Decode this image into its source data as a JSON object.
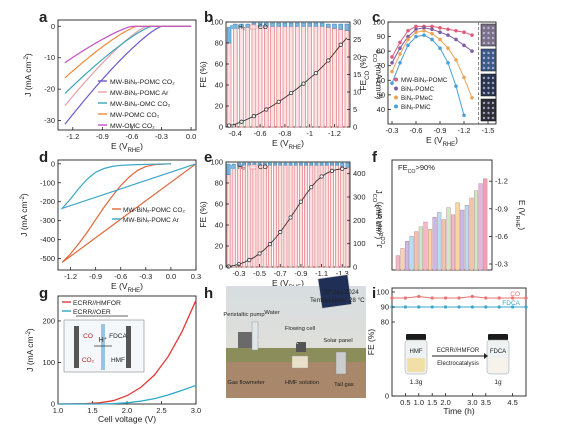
{
  "figure": {
    "panel_letters": [
      "a",
      "b",
      "c",
      "d",
      "e",
      "f",
      "g",
      "h",
      "i"
    ]
  },
  "chart_data": [
    {
      "panel": "a",
      "type": "line",
      "xlabel": "E (V",
      "xlabel_sub": "RHE",
      "xlabel_tail": ")",
      "ylabel": "J (mA cm",
      "ylabel_sup": "-2",
      "ylabel_tail": ")",
      "xlim": [
        -1.35,
        0.05
      ],
      "ylim": [
        -33,
        2
      ],
      "xticks": [
        "-1.2",
        "-0.9",
        "-0.6",
        "-0.3",
        "0.0"
      ],
      "xtick_values": [
        -1.2,
        -0.9,
        -0.6,
        -0.3,
        0.0
      ],
      "yticks": [
        "0",
        "-10",
        "-20",
        "-30"
      ],
      "ytick_values": [
        0,
        -10,
        -20,
        -30
      ],
      "legend_position": "lower-right",
      "series": [
        {
          "name": "MW-BiNₓ-POMC CO₂",
          "color": "#6a5acd",
          "onset": -0.3,
          "jmax": -32
        },
        {
          "name": "MW-BiNₓ-POMC Ar",
          "color": "#e89ea8",
          "onset": -0.45,
          "jmax": -26
        },
        {
          "name": "MW-BiNₓ-OMC CO₂",
          "color": "#3aa6b9",
          "onset": -0.4,
          "jmax": -22
        },
        {
          "name": "MW-POMC CO₂",
          "color": "#f08a3c",
          "onset": -0.55,
          "jmax": -17
        },
        {
          "name": "MW-OMC CO₂",
          "color": "#c44fc7",
          "onset": -0.6,
          "jmax": -12
        }
      ]
    },
    {
      "panel": "b",
      "type": "bar",
      "xlabel": "E (V",
      "xlabel_sub": "RHE",
      "xlabel_tail": ")",
      "ylabel": "FE (%)",
      "y2label": "J",
      "y2label_sub": "CO",
      "y2label_tail": " (mA cm",
      "y2label_sup": "-2",
      "y2label_tail2": ")",
      "ylim": [
        0,
        100
      ],
      "y2lim": [
        0,
        30
      ],
      "xticks": [
        "-0.4",
        "-0.6",
        "-0.8",
        "-1",
        "-1.2"
      ],
      "xtick_values": [
        -0.4,
        -0.6,
        -0.8,
        -1.0,
        -1.2
      ],
      "yticks": [
        "0",
        "20",
        "40",
        "60",
        "80",
        "100"
      ],
      "y2ticks": [
        "0",
        "5",
        "10",
        "15",
        "20",
        "25",
        "30"
      ],
      "legend": [
        "H₂",
        "CO"
      ],
      "x": [
        -0.35,
        -0.4,
        -0.45,
        -0.5,
        -0.55,
        -0.6,
        -0.65,
        -0.7,
        -0.75,
        -0.8,
        -0.85,
        -0.9,
        -0.95,
        -1.0,
        -1.05,
        -1.1,
        -1.15,
        -1.2,
        -1.25,
        -1.3
      ],
      "fe_co": [
        80,
        94,
        95,
        95,
        96,
        96,
        96,
        96,
        96,
        96,
        96,
        96,
        96,
        96,
        96,
        96,
        95,
        94,
        93,
        92
      ],
      "fe_h2": [
        15,
        4,
        3,
        3,
        3,
        3,
        3,
        3,
        3,
        3,
        3,
        3,
        3,
        3,
        3,
        3,
        3,
        4,
        5,
        6
      ],
      "j_co": [
        0.4,
        0.8,
        1.5,
        2.3,
        3.1,
        4.0,
        5.0,
        6.1,
        7.2,
        8.4,
        9.7,
        11.0,
        12.4,
        13.9,
        15.4,
        17.1,
        19.0,
        21.2,
        23.5,
        25.5
      ],
      "colors": {
        "co": "#e6868c",
        "h2": "#7fb6dd"
      }
    },
    {
      "panel": "c",
      "type": "line",
      "xlabel": "E (V",
      "xlabel_sub": "RHE",
      "xlabel_tail": ")",
      "ylabel": "FE",
      "ylabel_sub": "CO",
      "ylabel_tail": " (%)",
      "xlim": [
        -0.25,
        -1.6
      ],
      "ylim": [
        30,
        100
      ],
      "xticks": [
        "-0.3",
        "-0.6",
        "-0.9",
        "-1.2",
        "-1.5"
      ],
      "xtick_values": [
        -0.3,
        -0.6,
        -0.9,
        -1.2,
        -1.5
      ],
      "yticks": [
        "40",
        "50",
        "60",
        "70",
        "80",
        "90",
        "100"
      ],
      "legend_position": "lower-left",
      "series": [
        {
          "name": "MW-BiNₓ-POMC",
          "color": "#e05a7a",
          "x": [
            -0.3,
            -0.4,
            -0.5,
            -0.6,
            -0.7,
            -0.8,
            -0.9,
            -1.0,
            -1.1,
            -1.2,
            -1.3
          ],
          "y": [
            76,
            86,
            94,
            97,
            97,
            97,
            96,
            95,
            94,
            93,
            91
          ]
        },
        {
          "name": "BiNₓ-POMC",
          "color": "#7b5ea7",
          "x": [
            -0.3,
            -0.4,
            -0.5,
            -0.6,
            -0.7,
            -0.8,
            -0.9,
            -1.0,
            -1.1,
            -1.2,
            -1.3
          ],
          "y": [
            72,
            82,
            90,
            95,
            96,
            95,
            93,
            91,
            88,
            84,
            80
          ]
        },
        {
          "name": "BiNₓ-PMeC",
          "color": "#e9a45a",
          "x": [
            -0.3,
            -0.4,
            -0.5,
            -0.6,
            -0.7,
            -0.8,
            -0.9,
            -1.0,
            -1.1,
            -1.2,
            -1.3
          ],
          "y": [
            66,
            78,
            88,
            93,
            94,
            92,
            88,
            82,
            74,
            62,
            48
          ]
        },
        {
          "name": "BiNₓ-PMiC",
          "color": "#4b9fd5",
          "x": [
            -0.3,
            -0.4,
            -0.5,
            -0.6,
            -0.7,
            -0.8,
            -0.9,
            -1.0,
            -1.1,
            -1.2
          ],
          "y": [
            58,
            72,
            84,
            90,
            91,
            88,
            82,
            72,
            56,
            36
          ]
        }
      ]
    },
    {
      "panel": "d",
      "type": "line",
      "xlabel": "E (V",
      "xlabel_sub": "RHE",
      "xlabel_tail": ")",
      "ylabel": "J (mA cm",
      "ylabel_sup": "-2",
      "ylabel_tail": ")",
      "xlim": [
        -1.35,
        0.3
      ],
      "ylim": [
        -560,
        20
      ],
      "xticks": [
        "-1.2",
        "-0.9",
        "-0.6",
        "-0.3",
        "0.0",
        "0.3"
      ],
      "xtick_values": [
        -1.2,
        -0.9,
        -0.6,
        -0.3,
        0.0,
        0.3
      ],
      "yticks": [
        "0",
        "-100",
        "-200",
        "-300",
        "-400",
        "-500"
      ],
      "ytick_values": [
        0,
        -100,
        -200,
        -300,
        -400,
        -500
      ],
      "legend_position": "center-right",
      "series": [
        {
          "name": "MW-BiNₓ-POMC CO₂",
          "color": "#e0673a",
          "x": [
            0.0,
            -0.2,
            -0.3,
            -0.4,
            -0.5,
            -0.6,
            -0.7,
            -0.8,
            -0.9,
            -1.0,
            -1.1,
            -1.2,
            -1.3
          ],
          "y": [
            0,
            -5,
            -15,
            -35,
            -70,
            -115,
            -170,
            -230,
            -295,
            -360,
            -420,
            -475,
            -520
          ]
        },
        {
          "name": "MW-BiNₓ-POMC Ar",
          "color": "#3aa6c9",
          "x": [
            0.0,
            -0.2,
            -0.4,
            -0.6,
            -0.7,
            -0.8,
            -0.9,
            -1.0,
            -1.1,
            -1.2,
            -1.3
          ],
          "y": [
            0,
            -2,
            -4,
            -8,
            -14,
            -25,
            -45,
            -80,
            -130,
            -185,
            -235
          ]
        }
      ]
    },
    {
      "panel": "e",
      "type": "bar",
      "xlabel": "E (V",
      "xlabel_sub": "RHE",
      "xlabel_tail": ")",
      "ylabel": "FE (%)",
      "y2label": "J",
      "y2label_sub": "CO",
      "y2label_tail": " (mA cm",
      "y2label_sup": "-2",
      "y2label_tail2": ")",
      "ylim": [
        0,
        100
      ],
      "y2lim": [
        0,
        450
      ],
      "xticks": [
        "-0.3",
        "-0.5",
        "-0.7",
        "-0.9",
        "-1.1",
        "-1.3"
      ],
      "xtick_values": [
        -0.3,
        -0.5,
        -0.7,
        -0.9,
        -1.1,
        -1.3
      ],
      "yticks": [
        "0",
        "20",
        "40",
        "60",
        "80",
        "100"
      ],
      "y2ticks": [
        "0",
        "100",
        "200",
        "300",
        "400"
      ],
      "legend": [
        "H₂",
        "CO"
      ],
      "x": [
        -0.2,
        -0.25,
        -0.3,
        -0.35,
        -0.4,
        -0.45,
        -0.5,
        -0.55,
        -0.6,
        -0.65,
        -0.7,
        -0.75,
        -0.8,
        -0.85,
        -0.9,
        -0.95,
        -1.0,
        -1.05,
        -1.1,
        -1.15,
        -1.2,
        -1.25,
        -1.3,
        -1.35
      ],
      "fe_co": [
        88,
        94,
        96,
        97,
        97,
        97,
        97,
        97,
        97,
        97,
        97,
        97,
        97,
        97,
        97,
        97,
        97,
        97,
        97,
        97,
        97,
        97,
        96,
        95
      ],
      "fe_h2": [
        10,
        4,
        3,
        2,
        2,
        2,
        2,
        2,
        2,
        2,
        2,
        2,
        2,
        2,
        2,
        2,
        2,
        2,
        2,
        2,
        2,
        2,
        3,
        4
      ],
      "j_co": [
        2,
        6,
        12,
        20,
        30,
        42,
        58,
        76,
        98,
        122,
        150,
        180,
        212,
        246,
        280,
        312,
        342,
        368,
        388,
        402,
        412,
        418,
        421,
        423
      ],
      "colors": {
        "co": "#e6868c",
        "h2": "#7fb6dd"
      }
    },
    {
      "panel": "f",
      "type": "bar",
      "annotation": "FE",
      "annotation_sub": "CO",
      "annotation_tail": ">90%",
      "ylabel": "J",
      "ylabel_sub": "CO",
      "ylabel_tail": " (mA cm",
      "ylabel_sup": "-2",
      "ylabel_tail2": ")",
      "y2label": "E (V",
      "y2label_sub": "RHE",
      "y2label_tail": ")",
      "y2ticks": [
        "-1.2",
        "-0.9",
        "-0.6",
        "-0.3"
      ],
      "values": [
        6,
        9,
        12,
        14,
        16,
        18,
        20,
        17,
        22,
        24,
        21,
        26,
        23,
        28,
        25,
        27,
        30,
        33,
        36,
        38
      ],
      "colors": [
        "#f3b8c4",
        "#f7d79e",
        "#c9b8e8",
        "#b8dcf0",
        "#f3c5a8",
        "#cfe8c0",
        "#f3b8c4",
        "#f7d79e",
        "#c9b8e8",
        "#b8dcf0",
        "#f3c5a8",
        "#cfe8c0",
        "#f3b8c4",
        "#f7d79e",
        "#c9b8e8",
        "#b8dcf0",
        "#f3c5a8",
        "#cfe8c0",
        "#e9b3e0",
        "#f0a0b0"
      ]
    },
    {
      "panel": "g",
      "type": "line",
      "xlabel": "Cell voltage (V)",
      "ylabel": "J (mA cm",
      "ylabel_sup": "-2",
      "ylabel_tail": ")",
      "xlim": [
        1.0,
        3.0
      ],
      "ylim": [
        0,
        260
      ],
      "xticks": [
        "1.0",
        "1.5",
        "2.0",
        "2.5",
        "3.0"
      ],
      "xtick_values": [
        1.0,
        1.5,
        2.0,
        2.5,
        3.0
      ],
      "yticks": [
        "0",
        "100",
        "200"
      ],
      "ytick_values": [
        0,
        100,
        200
      ],
      "legend_position": "top-left",
      "series": [
        {
          "name": "ECRR//HMFOR",
          "color": "#e53935",
          "x": [
            1.0,
            1.4,
            1.6,
            1.8,
            2.0,
            2.2,
            2.4,
            2.6,
            2.8,
            3.0
          ],
          "y": [
            0,
            1,
            3,
            8,
            20,
            40,
            70,
            115,
            175,
            250
          ]
        },
        {
          "name": "ECRR//OER",
          "color": "#2aa8c8",
          "x": [
            1.0,
            1.6,
            1.8,
            2.0,
            2.2,
            2.4,
            2.6,
            2.8,
            3.0
          ],
          "y": [
            0,
            0,
            1,
            3,
            7,
            13,
            22,
            33,
            45
          ]
        }
      ]
    },
    {
      "panel": "i",
      "type": "line",
      "xlabel": "Time (h)",
      "ylabel": "FE (%)",
      "xlim": [
        0,
        5.0
      ],
      "ylim": [
        0,
        100
      ],
      "xticks": [
        "0.5",
        "1.0",
        "1.5",
        "2.0",
        "3.0",
        "3.5",
        "4.5"
      ],
      "xtick_values": [
        0.5,
        1.0,
        1.5,
        2.0,
        3.0,
        3.5,
        4.5
      ],
      "yticks": [
        "0",
        "80",
        "90",
        "100"
      ],
      "series": [
        {
          "name": "CO",
          "color": "#e9736f",
          "x": [
            0,
            0.5,
            1.0,
            1.5,
            2.0,
            2.5,
            3.0,
            3.5,
            4.0,
            4.5,
            5.0
          ],
          "y": [
            96,
            96,
            97,
            96,
            96,
            96,
            97,
            96,
            96,
            96,
            96
          ]
        },
        {
          "name": "FDCA",
          "color": "#3aa6c9",
          "x": [
            0,
            0.5,
            1.0,
            1.5,
            2.0,
            2.5,
            3.0,
            3.5,
            4.0,
            4.5,
            5.0
          ],
          "y": [
            90,
            90,
            90,
            90,
            90,
            90,
            90,
            90,
            90,
            90,
            90
          ]
        }
      ]
    }
  ],
  "panel_c_insets": {
    "labels": []
  },
  "panel_g_inset": {
    "labels": [
      "H⁺",
      "CO",
      "CO₂",
      "FDCA",
      "HMF"
    ]
  },
  "panel_h": {
    "date_line": "28ᵗʰJan.2024",
    "temp_line": "Temperature: 28 °C",
    "labels": [
      "Peristaltic pump",
      "Water",
      "Flowing cell",
      "Solar panel",
      "Gas flowmeter",
      "HMF solution",
      "Tail gas cylinder"
    ]
  },
  "panel_i_inset": {
    "arrow_label_1": "ECRR//HMFOR",
    "arrow_label_2": "Electrocatalysis",
    "left_jar_label": "HMF",
    "right_jar_label": "FDCA",
    "left_mass": "1.3g",
    "right_mass": "1g"
  }
}
